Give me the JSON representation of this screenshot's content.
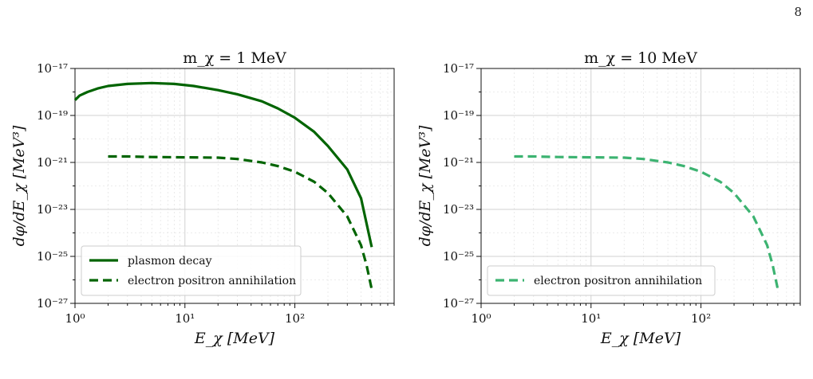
{
  "page": {
    "number": "8"
  },
  "colors": {
    "panel_left_series": "#006400",
    "panel_right_series": "#3cb371"
  },
  "chart_data": [
    {
      "type": "line",
      "title": "m_χ = 1 MeV",
      "xlabel": "E_χ [MeV]",
      "ylabel": "dφ/dE_χ [MeV³]",
      "xscale": "log",
      "yscale": "log",
      "xlim": [
        1,
        800
      ],
      "ylim": [
        1e-27,
        1e-17
      ],
      "x_ticks": [
        "10⁰",
        "10¹",
        "10²"
      ],
      "y_ticks": [
        "10⁻²⁷",
        "10⁻²⁵",
        "10⁻²³",
        "10⁻²¹",
        "10⁻¹⁹",
        "10⁻¹⁷"
      ],
      "grid": true,
      "legend_position": "lower-left",
      "series": [
        {
          "name": "plasmon decay",
          "style": "solid",
          "color": "#006400",
          "x": [
            1,
            1.1,
            1.3,
            1.6,
            2,
            3,
            5,
            8,
            12,
            20,
            30,
            50,
            70,
            100,
            150,
            200,
            300,
            400,
            500
          ],
          "y": [
            4.5e-19,
            7e-19,
            1e-18,
            1.4e-18,
            1.8e-18,
            2.2e-18,
            2.4e-18,
            2.2e-18,
            1.8e-18,
            1.2e-18,
            8e-19,
            4e-19,
            2e-19,
            8e-20,
            2e-20,
            5e-21,
            5e-22,
            3e-23,
            2.5e-25
          ]
        },
        {
          "name": "electron positron annihilation",
          "style": "dashed",
          "color": "#006400",
          "x": [
            2,
            3,
            5,
            10,
            20,
            30,
            50,
            70,
            100,
            150,
            200,
            300,
            400,
            450,
            500
          ],
          "y": [
            1.8e-21,
            1.8e-21,
            1.7e-21,
            1.65e-21,
            1.6e-21,
            1.4e-21,
            1e-21,
            7e-22,
            4e-22,
            1.5e-22,
            5e-23,
            5e-24,
            3e-25,
            4e-26,
            4e-27
          ]
        }
      ]
    },
    {
      "type": "line",
      "title": "m_χ = 10 MeV",
      "xlabel": "E_χ [MeV]",
      "ylabel": "dφ/dE_χ [MeV³]",
      "xscale": "log",
      "yscale": "log",
      "xlim": [
        1,
        800
      ],
      "ylim": [
        1e-27,
        1e-17
      ],
      "x_ticks": [
        "10⁰",
        "10¹",
        "10²"
      ],
      "y_ticks": [
        "10⁻²⁷",
        "10⁻²⁵",
        "10⁻²³",
        "10⁻²¹",
        "10⁻¹⁹",
        "10⁻¹⁷"
      ],
      "grid": true,
      "legend_position": "lower-left",
      "series": [
        {
          "name": "electron positron annihilation",
          "style": "dashed",
          "color": "#3cb371",
          "x": [
            2,
            3,
            5,
            10,
            20,
            30,
            50,
            70,
            100,
            150,
            200,
            300,
            400,
            450,
            500
          ],
          "y": [
            1.8e-21,
            1.8e-21,
            1.7e-21,
            1.65e-21,
            1.6e-21,
            1.4e-21,
            1e-21,
            7e-22,
            4e-22,
            1.5e-22,
            5e-23,
            5e-24,
            3e-25,
            4e-26,
            4e-27
          ]
        }
      ]
    }
  ]
}
